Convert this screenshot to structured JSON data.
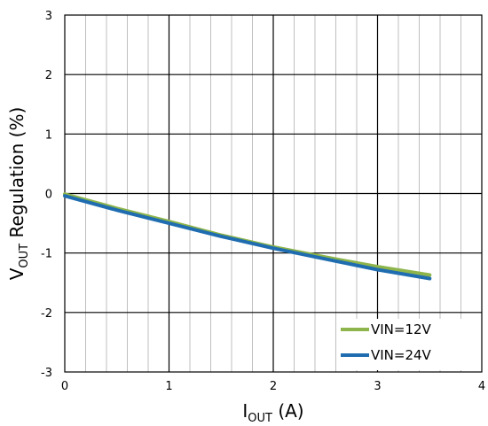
{
  "chart_data": {
    "type": "line",
    "xlabel": {
      "main": "I",
      "sub": "OUT",
      "rest": " (A)"
    },
    "ylabel": {
      "main": "V",
      "sub": "OUT",
      "rest": " Regulation (%)"
    },
    "xlim": [
      0,
      4
    ],
    "ylim": [
      -3,
      3
    ],
    "x_major_ticks": [
      0,
      1,
      2,
      3,
      4
    ],
    "x_minor_step": 0.2,
    "y_major_ticks": [
      -3,
      -2,
      -1,
      0,
      1,
      2,
      3
    ],
    "x_tick_labels": [
      "0",
      "1",
      "2",
      "3",
      "4"
    ],
    "y_tick_labels": [
      "-3",
      "-2",
      "-1",
      "0",
      "1",
      "2",
      "3"
    ],
    "grid": true,
    "legend_position": "bottom-right",
    "series": [
      {
        "name": "VIN=12V",
        "color": "#8DB54B",
        "x": [
          0,
          0.5,
          1.0,
          1.5,
          2.0,
          2.5,
          3.0,
          3.5
        ],
        "y": [
          -0.01,
          -0.25,
          -0.47,
          -0.7,
          -0.9,
          -1.07,
          -1.23,
          -1.37
        ]
      },
      {
        "name": "VIN=24V",
        "color": "#1F6DB0",
        "x": [
          0,
          0.5,
          1.0,
          1.5,
          2.0,
          2.5,
          3.0,
          3.5
        ],
        "y": [
          -0.04,
          -0.28,
          -0.5,
          -0.72,
          -0.92,
          -1.1,
          -1.28,
          -1.43
        ]
      }
    ]
  }
}
